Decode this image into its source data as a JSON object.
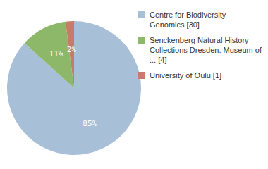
{
  "chart_data": {
    "type": "pie",
    "categories": [
      "Centre for Biodiversity\nGenomics [30]",
      "Senckenberg Natural History\nCollections Dresden. Museum of\n... [4]",
      "University of Oulu [1]"
    ],
    "values": [
      85,
      11,
      2
    ],
    "value_labels": [
      "85%",
      "11%",
      "2%"
    ],
    "colors": [
      "#a8bfd8",
      "#8db86a",
      "#c97b6b"
    ],
    "data_labels": true,
    "legend": "right"
  }
}
